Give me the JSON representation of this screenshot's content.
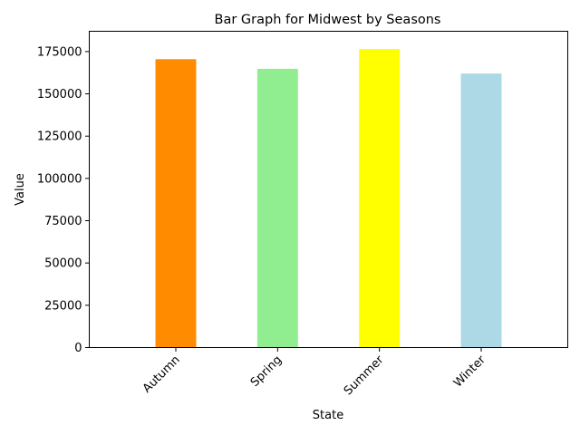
{
  "chart_data": {
    "type": "bar",
    "title": "Bar Graph for Midwest by Seasons",
    "xlabel": "State",
    "ylabel": "Value",
    "categories": [
      "Autumn",
      "Spring",
      "Summer",
      "Winter"
    ],
    "values": [
      170500,
      164800,
      176500,
      162000
    ],
    "colors": [
      "#ff8c00",
      "#90ee90",
      "#ffff00",
      "#add8e6"
    ],
    "ylim": [
      0,
      187000
    ],
    "yticks": [
      0,
      25000,
      50000,
      75000,
      100000,
      125000,
      150000,
      175000
    ],
    "ytick_labels": [
      "0",
      "25000",
      "50000",
      "75000",
      "100000",
      "125000",
      "150000",
      "175000"
    ],
    "grid": false,
    "legend": "none"
  }
}
